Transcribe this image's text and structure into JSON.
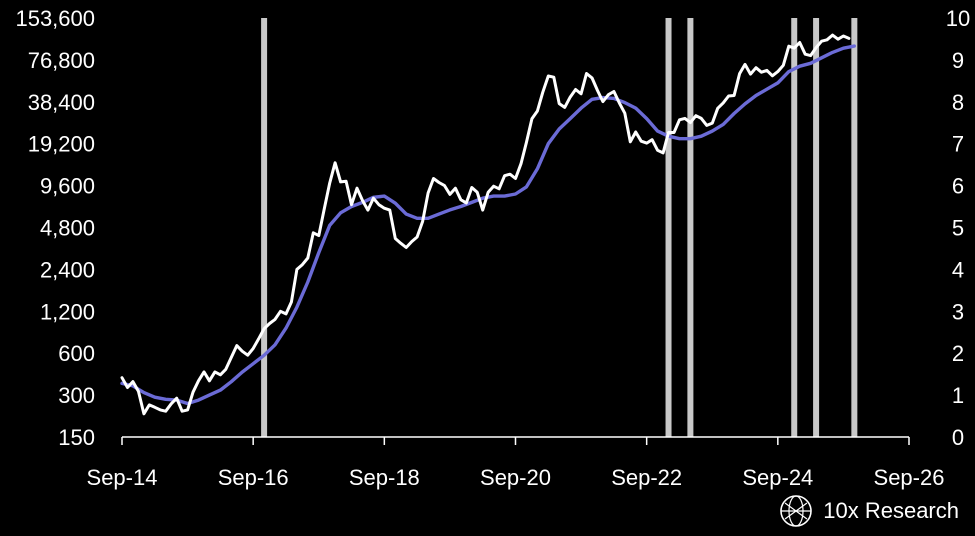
{
  "brand": {
    "name": "10x Research",
    "icon": "globe-logo-icon"
  },
  "chart_data": {
    "type": "line",
    "title": "",
    "xlabel": "",
    "ylabel": "",
    "x_tick_labels": [
      "Sep-14",
      "Sep-16",
      "Sep-18",
      "Sep-20",
      "Sep-22",
      "Sep-24",
      "Sep-26"
    ],
    "y_left": {
      "scale": "log2",
      "tick_labels": [
        "150",
        "300",
        "600",
        "1,200",
        "2,400",
        "4,800",
        "9,600",
        "19,200",
        "38,400",
        "76,800",
        "153,600"
      ],
      "ylim": [
        150,
        153600
      ]
    },
    "y_right": {
      "tick_labels": [
        "0",
        "1",
        "2",
        "3",
        "4",
        "5",
        "6",
        "7",
        "8",
        "9",
        "10"
      ],
      "ylim": [
        0,
        10
      ]
    },
    "colors": {
      "price": "#ffffff",
      "trend": "#6b6bd6",
      "markers": "#c8c8c8",
      "axis": "#ffffff"
    },
    "vertical_markers": [
      "2016-11",
      "2023-01",
      "2023-05",
      "2024-12",
      "2025-04",
      "2025-11"
    ],
    "series": [
      {
        "axis": "left",
        "color": "#ffffff",
        "points": [
          [
            "2014-09",
            400
          ],
          [
            "2014-10",
            340
          ],
          [
            "2014-11",
            375
          ],
          [
            "2014-12",
            320
          ],
          [
            "2015-01",
            220
          ],
          [
            "2015-02",
            255
          ],
          [
            "2015-03",
            245
          ],
          [
            "2015-04",
            235
          ],
          [
            "2015-05",
            230
          ],
          [
            "2015-06",
            260
          ],
          [
            "2015-07",
            285
          ],
          [
            "2015-08",
            230
          ],
          [
            "2015-09",
            235
          ],
          [
            "2015-10",
            315
          ],
          [
            "2015-11",
            380
          ],
          [
            "2015-12",
            440
          ],
          [
            "2016-01",
            380
          ],
          [
            "2016-02",
            440
          ],
          [
            "2016-03",
            420
          ],
          [
            "2016-04",
            460
          ],
          [
            "2016-05",
            560
          ],
          [
            "2016-06",
            680
          ],
          [
            "2016-07",
            620
          ],
          [
            "2016-08",
            580
          ],
          [
            "2016-09",
            650
          ],
          [
            "2016-10",
            760
          ],
          [
            "2016-11",
            900
          ],
          [
            "2016-12",
            980
          ],
          [
            "2017-01",
            1050
          ],
          [
            "2017-02",
            1200
          ],
          [
            "2017-03",
            1150
          ],
          [
            "2017-04",
            1400
          ],
          [
            "2017-05",
            2400
          ],
          [
            "2017-06",
            2600
          ],
          [
            "2017-07",
            2900
          ],
          [
            "2017-08",
            4400
          ],
          [
            "2017-09",
            4200
          ],
          [
            "2017-10",
            6500
          ],
          [
            "2017-11",
            10000
          ],
          [
            "2017-12",
            14000
          ],
          [
            "2018-01",
            10200
          ],
          [
            "2018-02",
            10300
          ],
          [
            "2018-03",
            7000
          ],
          [
            "2018-04",
            9200
          ],
          [
            "2018-05",
            7500
          ],
          [
            "2018-06",
            6400
          ],
          [
            "2018-07",
            7800
          ],
          [
            "2018-08",
            7000
          ],
          [
            "2018-09",
            6600
          ],
          [
            "2018-10",
            6400
          ],
          [
            "2018-11",
            4000
          ],
          [
            "2018-12",
            3700
          ],
          [
            "2019-01",
            3450
          ],
          [
            "2019-02",
            3800
          ],
          [
            "2019-03",
            4100
          ],
          [
            "2019-04",
            5300
          ],
          [
            "2019-05",
            8500
          ],
          [
            "2019-06",
            10800
          ],
          [
            "2019-07",
            10100
          ],
          [
            "2019-08",
            9600
          ],
          [
            "2019-09",
            8300
          ],
          [
            "2019-10",
            9200
          ],
          [
            "2019-11",
            7600
          ],
          [
            "2019-12",
            7200
          ],
          [
            "2020-01",
            9300
          ],
          [
            "2020-02",
            8600
          ],
          [
            "2020-03",
            6400
          ],
          [
            "2020-04",
            8600
          ],
          [
            "2020-05",
            9500
          ],
          [
            "2020-06",
            9100
          ],
          [
            "2020-07",
            11300
          ],
          [
            "2020-08",
            11600
          ],
          [
            "2020-09",
            10800
          ],
          [
            "2020-10",
            13800
          ],
          [
            "2020-11",
            19600
          ],
          [
            "2020-12",
            29000
          ],
          [
            "2021-01",
            33000
          ],
          [
            "2021-02",
            45000
          ],
          [
            "2021-03",
            58800
          ],
          [
            "2021-04",
            57700
          ],
          [
            "2021-05",
            37300
          ],
          [
            "2021-06",
            35000
          ],
          [
            "2021-07",
            41500
          ],
          [
            "2021-08",
            47100
          ],
          [
            "2021-09",
            43800
          ],
          [
            "2021-10",
            61300
          ],
          [
            "2021-11",
            57000
          ],
          [
            "2021-12",
            46300
          ],
          [
            "2022-01",
            38500
          ],
          [
            "2022-02",
            43200
          ],
          [
            "2022-03",
            45500
          ],
          [
            "2022-04",
            37700
          ],
          [
            "2022-05",
            31800
          ],
          [
            "2022-06",
            19800
          ],
          [
            "2022-07",
            23300
          ],
          [
            "2022-08",
            20000
          ],
          [
            "2022-09",
            19400
          ],
          [
            "2022-10",
            20500
          ],
          [
            "2022-11",
            17200
          ],
          [
            "2022-12",
            16500
          ],
          [
            "2023-01",
            23100
          ],
          [
            "2023-02",
            23100
          ],
          [
            "2023-03",
            28500
          ],
          [
            "2023-04",
            29200
          ],
          [
            "2023-05",
            27200
          ],
          [
            "2023-06",
            30500
          ],
          [
            "2023-07",
            29200
          ],
          [
            "2023-08",
            26000
          ],
          [
            "2023-09",
            27000
          ],
          [
            "2023-10",
            34500
          ],
          [
            "2023-11",
            37700
          ],
          [
            "2023-12",
            42300
          ],
          [
            "2024-01",
            42600
          ],
          [
            "2024-02",
            61200
          ],
          [
            "2024-03",
            71300
          ],
          [
            "2024-04",
            60700
          ],
          [
            "2024-05",
            67500
          ],
          [
            "2024-06",
            62700
          ],
          [
            "2024-07",
            64600
          ],
          [
            "2024-08",
            59000
          ],
          [
            "2024-09",
            63300
          ],
          [
            "2024-10",
            70200
          ],
          [
            "2024-11",
            96400
          ],
          [
            "2024-12",
            93400
          ],
          [
            "2025-01",
            102400
          ],
          [
            "2025-02",
            84400
          ],
          [
            "2025-03",
            82500
          ],
          [
            "2025-04",
            94200
          ],
          [
            "2025-05",
            104600
          ],
          [
            "2025-06",
            107100
          ],
          [
            "2025-07",
            115800
          ],
          [
            "2025-08",
            108200
          ],
          [
            "2025-09",
            114000
          ],
          [
            "2025-10",
            109600
          ]
        ]
      },
      {
        "axis": "right",
        "color": "#6b6bd6",
        "points": [
          [
            "2014-09",
            1.28
          ],
          [
            "2014-11",
            1.22
          ],
          [
            "2015-01",
            1.06
          ],
          [
            "2015-03",
            0.95
          ],
          [
            "2015-05",
            0.9
          ],
          [
            "2015-07",
            0.88
          ],
          [
            "2015-09",
            0.8
          ],
          [
            "2015-11",
            0.88
          ],
          [
            "2016-01",
            1.0
          ],
          [
            "2016-03",
            1.12
          ],
          [
            "2016-05",
            1.32
          ],
          [
            "2016-07",
            1.55
          ],
          [
            "2016-09",
            1.75
          ],
          [
            "2016-11",
            1.95
          ],
          [
            "2017-01",
            2.2
          ],
          [
            "2017-03",
            2.6
          ],
          [
            "2017-05",
            3.1
          ],
          [
            "2017-07",
            3.7
          ],
          [
            "2017-09",
            4.4
          ],
          [
            "2017-11",
            5.05
          ],
          [
            "2018-01",
            5.35
          ],
          [
            "2018-03",
            5.5
          ],
          [
            "2018-05",
            5.6
          ],
          [
            "2018-07",
            5.72
          ],
          [
            "2018-09",
            5.75
          ],
          [
            "2018-11",
            5.58
          ],
          [
            "2019-01",
            5.32
          ],
          [
            "2019-03",
            5.22
          ],
          [
            "2019-05",
            5.22
          ],
          [
            "2019-07",
            5.32
          ],
          [
            "2019-09",
            5.42
          ],
          [
            "2019-11",
            5.5
          ],
          [
            "2020-01",
            5.6
          ],
          [
            "2020-03",
            5.7
          ],
          [
            "2020-05",
            5.75
          ],
          [
            "2020-07",
            5.75
          ],
          [
            "2020-09",
            5.8
          ],
          [
            "2020-11",
            5.97
          ],
          [
            "2021-01",
            6.4
          ],
          [
            "2021-03",
            7.0
          ],
          [
            "2021-05",
            7.35
          ],
          [
            "2021-07",
            7.6
          ],
          [
            "2021-09",
            7.85
          ],
          [
            "2021-11",
            8.06
          ],
          [
            "2022-01",
            8.1
          ],
          [
            "2022-03",
            8.08
          ],
          [
            "2022-05",
            7.98
          ],
          [
            "2022-07",
            7.85
          ],
          [
            "2022-09",
            7.6
          ],
          [
            "2022-11",
            7.3
          ],
          [
            "2023-01",
            7.18
          ],
          [
            "2023-03",
            7.12
          ],
          [
            "2023-05",
            7.12
          ],
          [
            "2023-07",
            7.18
          ],
          [
            "2023-09",
            7.3
          ],
          [
            "2023-11",
            7.46
          ],
          [
            "2024-01",
            7.72
          ],
          [
            "2024-03",
            7.95
          ],
          [
            "2024-05",
            8.15
          ],
          [
            "2024-07",
            8.3
          ],
          [
            "2024-09",
            8.45
          ],
          [
            "2024-11",
            8.72
          ],
          [
            "2025-01",
            8.85
          ],
          [
            "2025-03",
            8.92
          ],
          [
            "2025-05",
            9.05
          ],
          [
            "2025-07",
            9.18
          ],
          [
            "2025-09",
            9.28
          ],
          [
            "2025-11",
            9.33
          ]
        ]
      }
    ]
  }
}
